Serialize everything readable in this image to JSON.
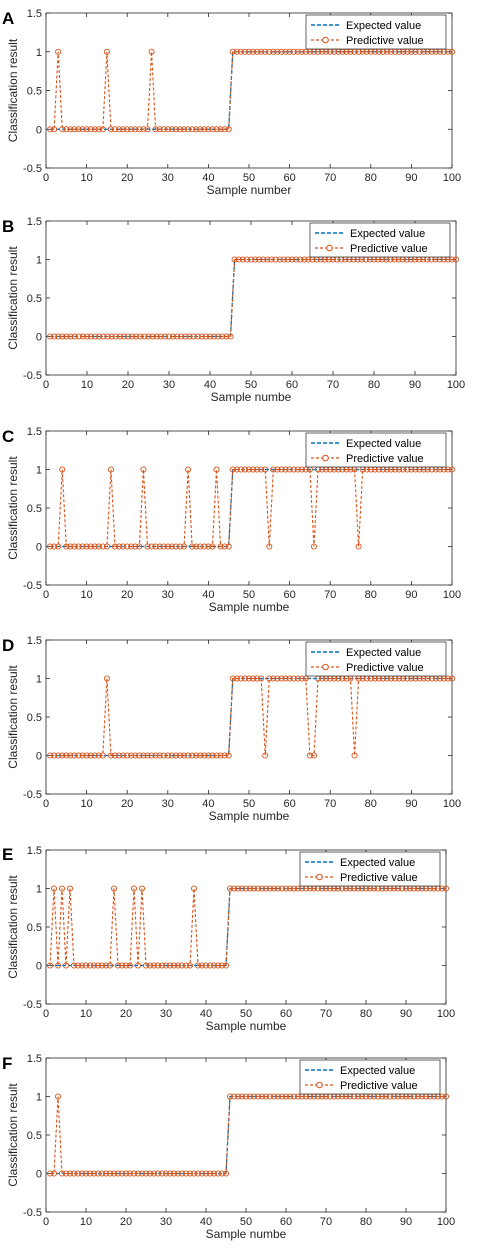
{
  "figure": {
    "panels": [
      {
        "letter": "A"
      },
      {
        "letter": "B"
      },
      {
        "letter": "C"
      },
      {
        "letter": "D"
      },
      {
        "letter": "E"
      },
      {
        "letter": "F"
      }
    ]
  },
  "colors": {
    "expected": "#0072BD",
    "predictive": "#D95319"
  },
  "chart_data": [
    {
      "type": "line",
      "panel": "A",
      "xlabel": "Sample number",
      "ylabel": "Classification result",
      "xlim": [
        0,
        100
      ],
      "ylim": [
        -0.5,
        1.5
      ],
      "xticks": [
        0,
        10,
        20,
        30,
        40,
        50,
        60,
        70,
        80,
        90,
        100
      ],
      "yticks": [
        -0.5,
        0,
        0.5,
        1,
        1.5
      ],
      "legend_position": "top-right",
      "n_samples": 100,
      "series": [
        {
          "name": "Expected value",
          "style": "dashed",
          "rule": "0 for samples 1-45, 1 for samples 46-100"
        },
        {
          "name": "Predictive value",
          "style": "dashed-circle",
          "rule": "expected value except misclassified samples",
          "misclassified_samples": [
            3,
            15,
            26
          ]
        }
      ]
    },
    {
      "type": "line",
      "panel": "B",
      "xlabel": "Sample numbe",
      "ylabel": "Classification result",
      "xlim": [
        0,
        100
      ],
      "ylim": [
        -0.5,
        1.5
      ],
      "xticks": [
        0,
        10,
        20,
        30,
        40,
        50,
        60,
        70,
        80,
        90,
        100
      ],
      "yticks": [
        -0.5,
        0,
        0.5,
        1,
        1.5
      ],
      "legend_position": "top-right",
      "n_samples": 100,
      "series": [
        {
          "name": "Expected value",
          "style": "dashed",
          "rule": "0 for samples 1-45, 1 for samples 46-100"
        },
        {
          "name": "Predictive value",
          "style": "dashed-circle",
          "rule": "expected value except misclassified samples",
          "misclassified_samples": []
        }
      ]
    },
    {
      "type": "line",
      "panel": "C",
      "xlabel": "Sample numbe",
      "ylabel": "Classification result",
      "xlim": [
        0,
        100
      ],
      "ylim": [
        -0.5,
        1.5
      ],
      "xticks": [
        0,
        10,
        20,
        30,
        40,
        50,
        60,
        70,
        80,
        90,
        100
      ],
      "yticks": [
        -0.5,
        0,
        0.5,
        1,
        1.5
      ],
      "legend_position": "top-right",
      "n_samples": 100,
      "series": [
        {
          "name": "Expected value",
          "style": "dashed",
          "rule": "0 for samples 1-45, 1 for samples 46-100"
        },
        {
          "name": "Predictive value",
          "style": "dashed-circle",
          "rule": "expected value except misclassified samples",
          "misclassified_samples": [
            4,
            16,
            24,
            35,
            42,
            55,
            66,
            77
          ]
        }
      ]
    },
    {
      "type": "line",
      "panel": "D",
      "xlabel": "Sample numbe",
      "ylabel": "Classification result",
      "xlim": [
        0,
        100
      ],
      "ylim": [
        -0.5,
        1.5
      ],
      "xticks": [
        0,
        10,
        20,
        30,
        40,
        50,
        60,
        70,
        80,
        90,
        100
      ],
      "yticks": [
        -0.5,
        0,
        0.5,
        1,
        1.5
      ],
      "legend_position": "top-right",
      "n_samples": 100,
      "series": [
        {
          "name": "Expected value",
          "style": "dashed",
          "rule": "0 for samples 1-45, 1 for samples 46-100"
        },
        {
          "name": "Predictive value",
          "style": "dashed-circle",
          "rule": "expected value except misclassified samples",
          "misclassified_samples": [
            15,
            54,
            65,
            66,
            76
          ]
        }
      ]
    },
    {
      "type": "line",
      "panel": "E",
      "xlabel": "Sample numbe",
      "ylabel": "Classification result",
      "xlim": [
        0,
        100
      ],
      "ylim": [
        -0.5,
        1.5
      ],
      "xticks": [
        0,
        10,
        20,
        30,
        40,
        50,
        60,
        70,
        80,
        90,
        100
      ],
      "yticks": [
        -0.5,
        0,
        0.5,
        1,
        1.5
      ],
      "legend_position": "top-right",
      "n_samples": 100,
      "series": [
        {
          "name": "Expected value",
          "style": "dashed",
          "rule": "0 for samples 1-45, 1 for samples 46-100"
        },
        {
          "name": "Predictive value",
          "style": "dashed-circle",
          "rule": "expected value except misclassified samples",
          "misclassified_samples": [
            2,
            4,
            6,
            17,
            22,
            24,
            37
          ]
        }
      ]
    },
    {
      "type": "line",
      "panel": "F",
      "xlabel": "Sample numbe",
      "ylabel": "Classification result",
      "xlim": [
        0,
        100
      ],
      "ylim": [
        -0.5,
        1.5
      ],
      "xticks": [
        0,
        10,
        20,
        30,
        40,
        50,
        60,
        70,
        80,
        90,
        100
      ],
      "yticks": [
        -0.5,
        0,
        0.5,
        1,
        1.5
      ],
      "legend_position": "top-right",
      "n_samples": 100,
      "series": [
        {
          "name": "Expected value",
          "style": "dashed",
          "rule": "0 for samples 1-45, 1 for samples 46-100"
        },
        {
          "name": "Predictive value",
          "style": "dashed-circle",
          "rule": "expected value except misclassified samples",
          "misclassified_samples": [
            3
          ]
        }
      ]
    }
  ]
}
